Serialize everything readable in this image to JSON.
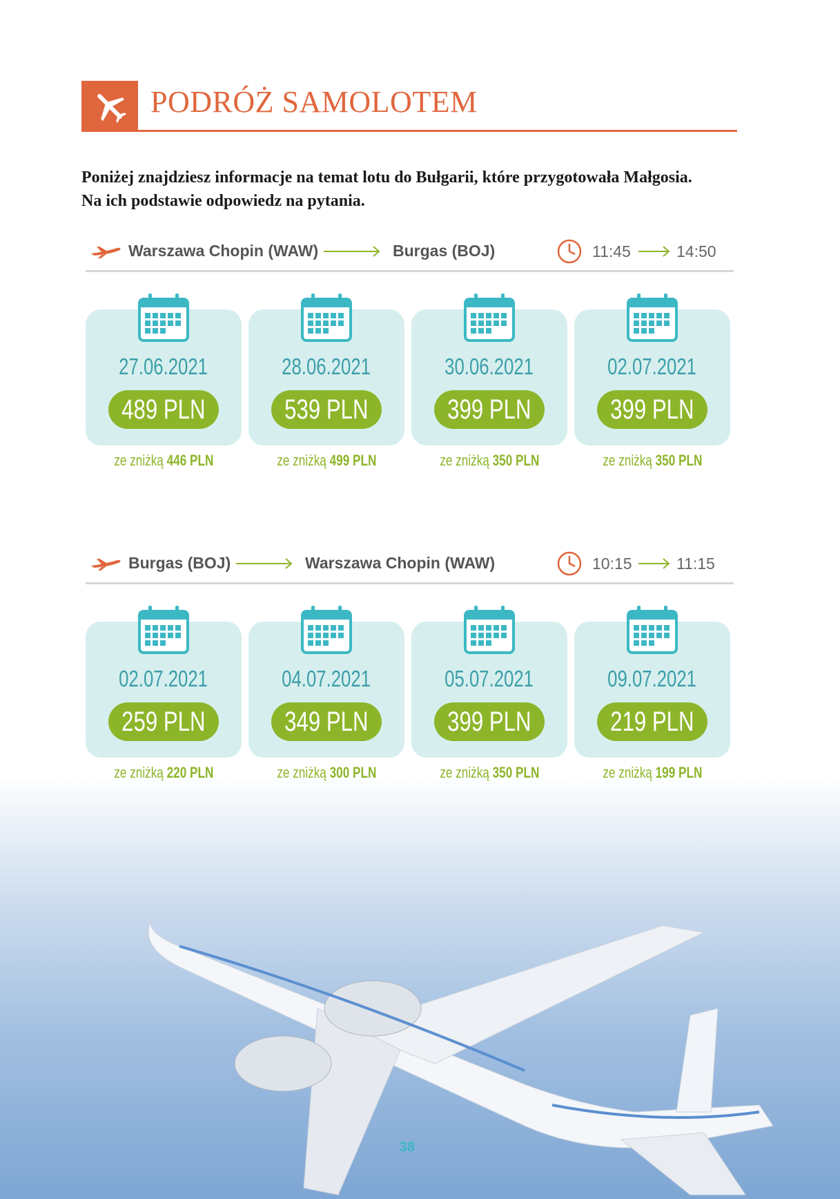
{
  "header": {
    "title": "PODRÓŻ SAMOLOTEM"
  },
  "intro": [
    "Poniżej znajdziesz informacje na temat lotu do Bułgarii, które przygotowała Małgosia.",
    "Na ich podstawie odpowiedz na pytania."
  ],
  "flights": [
    {
      "from": "Warszawa Chopin (WAW)",
      "to": "Burgas (BOJ)",
      "departure": "11:45",
      "arrival": "14:50",
      "cards": [
        {
          "date": "27.06.2021",
          "price": "489 PLN",
          "discount_label": "ze zniżką",
          "discount_price": "446 PLN"
        },
        {
          "date": "28.06.2021",
          "price": "539 PLN",
          "discount_label": "ze zniżką",
          "discount_price": "499 PLN"
        },
        {
          "date": "30.06.2021",
          "price": "399 PLN",
          "discount_label": "ze zniżką",
          "discount_price": "350 PLN"
        },
        {
          "date": "02.07.2021",
          "price": "399 PLN",
          "discount_label": "ze zniżką",
          "discount_price": "350 PLN"
        }
      ]
    },
    {
      "from": "Burgas (BOJ)",
      "to": "Warszawa Chopin (WAW)",
      "departure": "10:15",
      "arrival": "11:15",
      "cards": [
        {
          "date": "02.07.2021",
          "price": "259 PLN",
          "discount_label": "ze zniżką",
          "discount_price": "220 PLN"
        },
        {
          "date": "04.07.2021",
          "price": "349 PLN",
          "discount_label": "ze zniżką",
          "discount_price": "300 PLN"
        },
        {
          "date": "05.07.2021",
          "price": "399 PLN",
          "discount_label": "ze zniżką",
          "discount_price": "350 PLN"
        },
        {
          "date": "09.07.2021",
          "price": "219 PLN",
          "discount_label": "ze zniżką",
          "discount_price": "199 PLN"
        }
      ]
    }
  ],
  "page_number": "38"
}
